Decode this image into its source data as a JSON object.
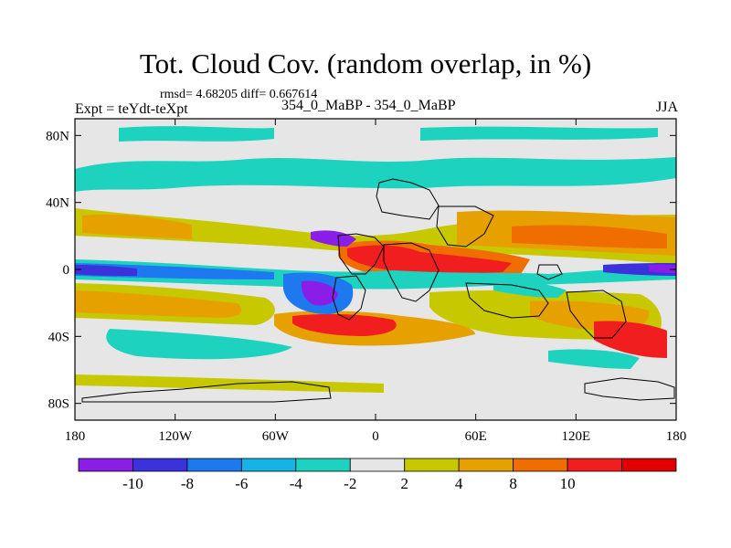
{
  "figure": {
    "title": "Tot. Cloud Cov. (random overlap, in %)",
    "stats": "rmsd= 4.68205 diff= 0.667614",
    "experiment": "Expt = teYdt-teXpt",
    "runs": "354_0_MaBP - 354_0_MaBP",
    "season": "JJA"
  },
  "axes": {
    "x_ticks": [
      "180",
      "120W",
      "60W",
      "0",
      "60E",
      "120E",
      "180"
    ],
    "x_values": [
      -180,
      -120,
      -60,
      0,
      60,
      120,
      180
    ],
    "y_ticks": [
      "80N",
      "40N",
      "0",
      "40S",
      "80S"
    ],
    "y_values": [
      80,
      40,
      0,
      -40,
      -80
    ],
    "lon_range": [
      -180,
      180
    ],
    "lat_range": [
      -90,
      90
    ]
  },
  "colorbar": {
    "labels": [
      "-10",
      "-8",
      "-6",
      "-4",
      "-2",
      "2",
      "4",
      "8",
      "10"
    ],
    "colors": [
      "#8b1ee6",
      "#3c32dc",
      "#1e78f0",
      "#14b4e6",
      "#1ed2c0",
      "#e6e6e6",
      "#c8c800",
      "#e6a000",
      "#f06e00",
      "#f01e1e",
      "#e00000"
    ]
  },
  "field_summary": {
    "variable": "Total cloud cover difference (%)",
    "features": [
      {
        "region": "equatorial Pacific & Indian band",
        "sign": "negative",
        "level": -10
      },
      {
        "region": "mid-latitude Northern Hemisphere band",
        "sign": "positive",
        "level": 8
      },
      {
        "region": "North Atlantic / West Africa",
        "sign": "positive",
        "level": 10
      },
      {
        "region": "South Atlantic near 40S",
        "sign": "positive",
        "level": 10
      },
      {
        "region": "high-latitude Northern Hemisphere",
        "sign": "negative",
        "level": -4
      },
      {
        "region": "southeast Pacific",
        "sign": "positive",
        "level": 8
      }
    ]
  }
}
